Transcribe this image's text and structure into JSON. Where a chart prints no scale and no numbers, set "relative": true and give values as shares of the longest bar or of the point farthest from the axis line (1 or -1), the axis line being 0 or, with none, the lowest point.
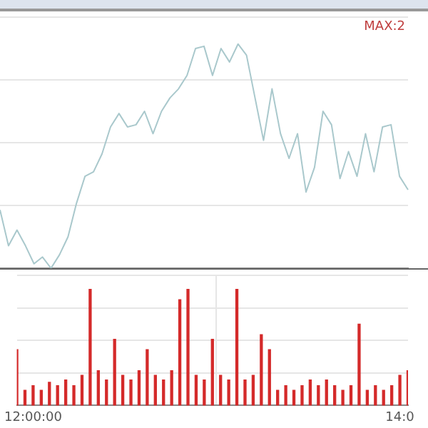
{
  "chart_data": [
    {
      "type": "line",
      "relative": true,
      "color": "#a9c8cc",
      "grid": "y",
      "legend": false,
      "marker": "none",
      "annotations": [
        "MAX:2"
      ],
      "categories": [
        null,
        null,
        null,
        null,
        null,
        null,
        null,
        null,
        null,
        null,
        null,
        null,
        null,
        null,
        null,
        null,
        null,
        null,
        null,
        null,
        null,
        null,
        null,
        null,
        null,
        null,
        null,
        null,
        null,
        null,
        null,
        null,
        null,
        null,
        null,
        null,
        null,
        null,
        null,
        null,
        null,
        null,
        null,
        null,
        null,
        null,
        null,
        null,
        null
      ],
      "values": [
        0.26,
        0.1,
        0.17,
        0.1,
        0.02,
        0.05,
        0,
        0.06,
        0.14,
        0.29,
        0.41,
        0.43,
        0.51,
        0.63,
        0.69,
        0.63,
        0.64,
        0.7,
        0.6,
        0.7,
        0.76,
        0.8,
        0.86,
        0.98,
        0.99,
        0.86,
        0.98,
        0.92,
        1,
        0.95,
        0.76,
        0.57,
        0.8,
        0.6,
        0.49,
        0.6,
        0.34,
        0.45,
        0.7,
        0.64,
        0.4,
        0.52,
        0.41,
        0.6,
        0.43,
        0.63,
        0.64,
        0.41,
        0.35
      ]
    },
    {
      "type": "bar",
      "relative": true,
      "color": "#d42a2a",
      "grid": true,
      "tick_labels": "x",
      "legend": false,
      "categories": [
        null,
        null,
        "12:00:00",
        null,
        null,
        null,
        null,
        null,
        null,
        null,
        null,
        null,
        null,
        null,
        null,
        null,
        null,
        null,
        null,
        null,
        null,
        null,
        null,
        null,
        null,
        null,
        null,
        null,
        null,
        null,
        null,
        null,
        null,
        null,
        null,
        null,
        null,
        null,
        null,
        null,
        null,
        null,
        null,
        null,
        null,
        null,
        null,
        "14:0",
        null
      ],
      "values": [
        0.48,
        0.13,
        0.17,
        0.13,
        0.2,
        0.17,
        0.22,
        0.17,
        0.26,
        1,
        0.3,
        0.22,
        0.57,
        0.26,
        0.22,
        0.3,
        0.48,
        0.26,
        0.22,
        0.3,
        0.91,
        1,
        0.26,
        0.22,
        0.57,
        0.26,
        0.22,
        1,
        0.22,
        0.26,
        0.61,
        0.48,
        0.13,
        0.17,
        0.13,
        0.17,
        0.22,
        0.17,
        0.22,
        0.17,
        0.13,
        0.17,
        0.7,
        0.13,
        0.17,
        0.13,
        0.17,
        0.26,
        0.3
      ]
    }
  ]
}
